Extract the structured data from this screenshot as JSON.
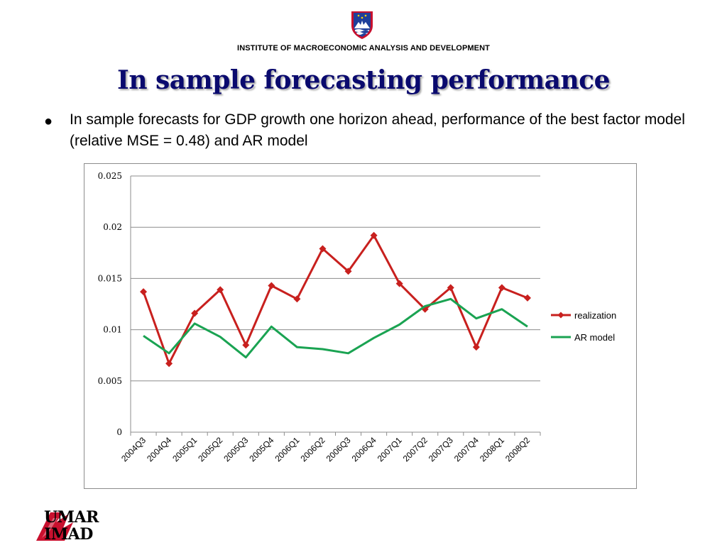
{
  "header": {
    "institute": "INSTITUTE OF MACROECONOMIC ANALYSIS AND DEVELOPMENT",
    "title": "In sample forecasting performance"
  },
  "bullet": {
    "marker": "●",
    "text": "In sample forecasts for GDP growth one horizon ahead, performance of the best factor model (relative MSE = 0.48) and AR model"
  },
  "logo": {
    "line1": "UMAR",
    "line2": "IMAD",
    "color": "#c8102e"
  },
  "chart_data": {
    "type": "line",
    "title": "",
    "xlabel": "",
    "ylabel": "",
    "categories": [
      "2004Q3",
      "2004Q4",
      "2005Q1",
      "2005Q2",
      "2005Q3",
      "2005Q4",
      "2006Q1",
      "2006Q2",
      "2006Q3",
      "2006Q4",
      "2007Q1",
      "2007Q2",
      "2007Q3",
      "2007Q4",
      "2008Q1",
      "2008Q2"
    ],
    "ylim": [
      0,
      0.025
    ],
    "yticks": [
      0,
      0.005,
      0.01,
      0.015,
      0.02,
      0.025
    ],
    "ytick_labels": [
      "0",
      "0.005",
      "0.01",
      "0.015",
      "0.02",
      "0.025"
    ],
    "grid": "horizontal",
    "legend_position": "right",
    "series": [
      {
        "name": "realization",
        "color": "#c8201e",
        "marker": "diamond",
        "values": [
          0.0137,
          0.0067,
          0.0116,
          0.0139,
          0.0085,
          0.0143,
          0.013,
          0.0179,
          0.0157,
          0.0192,
          0.0145,
          0.012,
          0.0141,
          0.0083,
          0.0141,
          0.0131
        ]
      },
      {
        "name": "AR model",
        "color": "#1aa352",
        "marker": "none",
        "values": [
          0.0094,
          0.0077,
          0.0106,
          0.0093,
          0.0073,
          0.0103,
          0.0083,
          0.0081,
          0.0077,
          0.0092,
          0.0105,
          0.0123,
          0.013,
          0.0111,
          0.012,
          0.0103
        ]
      }
    ]
  }
}
